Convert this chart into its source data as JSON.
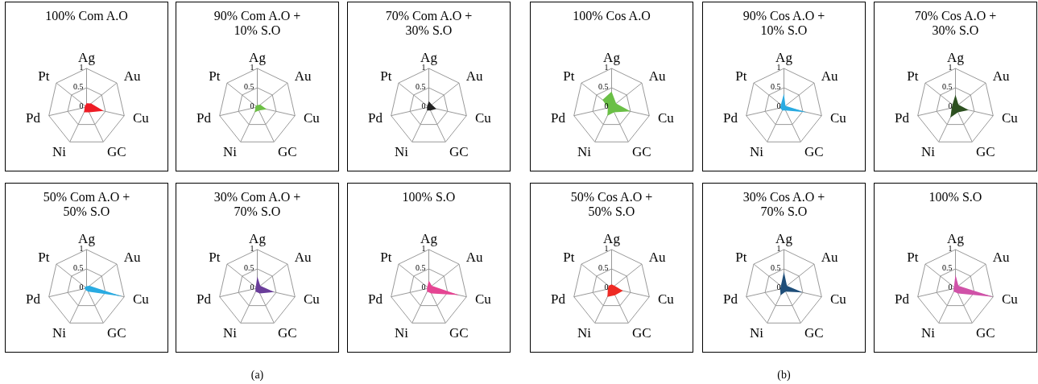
{
  "chart_data": [
    {
      "type": "radar",
      "title": "100% Com A.O",
      "categories": [
        "Ag",
        "Au",
        "Cu",
        "GC",
        "Ni",
        "Pd",
        "Pt"
      ],
      "series": [
        {
          "color": "#ee1c25",
          "values": [
            0.1,
            0.15,
            0.45,
            0.15,
            0.15,
            0.05,
            0.05
          ]
        }
      ],
      "ylim": [
        0,
        1
      ],
      "yticks": [
        0,
        0.5,
        1
      ],
      "grid": true
    },
    {
      "type": "radar",
      "title": "90% Com A.O + 10% S.O",
      "categories": [
        "Ag",
        "Au",
        "Cu",
        "GC",
        "Ni",
        "Pd",
        "Pt"
      ],
      "series": [
        {
          "color": "#6cbf45",
          "values": [
            0.05,
            0.1,
            0.25,
            0.1,
            0.15,
            0.05,
            0.05
          ]
        }
      ],
      "ylim": [
        0,
        1
      ],
      "yticks": [
        0,
        0.5,
        1
      ],
      "grid": true
    },
    {
      "type": "radar",
      "title": "70% Com A.O + 30% S.O",
      "categories": [
        "Ag",
        "Au",
        "Cu",
        "GC",
        "Ni",
        "Pd",
        "Pt"
      ],
      "series": [
        {
          "color": "#222222",
          "values": [
            0.15,
            0.1,
            0.2,
            0.1,
            0.1,
            0.05,
            0.05
          ]
        }
      ],
      "ylim": [
        0,
        1
      ],
      "yticks": [
        0,
        0.5,
        1
      ],
      "grid": true
    },
    {
      "type": "radar",
      "title": "100% Cos A.O",
      "categories": [
        "Ag",
        "Au",
        "Cu",
        "GC",
        "Ni",
        "Pd",
        "Pt"
      ],
      "series": [
        {
          "color": "#6abf46",
          "values": [
            0.4,
            0.15,
            0.5,
            0.15,
            0.25,
            0.1,
            0.3
          ]
        }
      ],
      "ylim": [
        0,
        1
      ],
      "yticks": [
        0,
        0.5,
        1
      ],
      "grid": true
    },
    {
      "type": "radar",
      "title": "90% Cos A.O + 10% S.O",
      "categories": [
        "Ag",
        "Au",
        "Cu",
        "GC",
        "Ni",
        "Pd",
        "Pt"
      ],
      "series": [
        {
          "color": "#29abe2",
          "values": [
            0.35,
            0.05,
            0.6,
            0.1,
            0.1,
            0.1,
            0.1
          ]
        }
      ],
      "ylim": [
        0,
        1
      ],
      "yticks": [
        0,
        0.5,
        1
      ],
      "grid": true
    },
    {
      "type": "radar",
      "title": "70% Cos A.O + 30% S.O",
      "categories": [
        "Ag",
        "Au",
        "Cu",
        "GC",
        "Ni",
        "Pd",
        "Pt"
      ],
      "series": [
        {
          "color": "#2d5020",
          "values": [
            0.32,
            0.1,
            0.35,
            0.15,
            0.3,
            0.1,
            0.1
          ]
        }
      ],
      "ylim": [
        0,
        1
      ],
      "yticks": [
        0,
        0.5,
        1
      ],
      "grid": true
    },
    {
      "type": "radar",
      "title": "50% Com A.O + 50% S.O",
      "categories": [
        "Ag",
        "Au",
        "Cu",
        "GC",
        "Ni",
        "Pd",
        "Pt"
      ],
      "series": [
        {
          "color": "#29abe2",
          "values": [
            0.05,
            0.1,
            0.95,
            0.1,
            0.05,
            0.05,
            0.05
          ]
        }
      ],
      "ylim": [
        0,
        1
      ],
      "yticks": [
        0,
        0.5,
        1
      ],
      "grid": true
    },
    {
      "type": "radar",
      "title": "30% Com A.O + 70% S.O",
      "categories": [
        "Ag",
        "Au",
        "Cu",
        "GC",
        "Ni",
        "Pd",
        "Pt"
      ],
      "series": [
        {
          "color": "#6a3d9a",
          "values": [
            0.3,
            0.1,
            0.45,
            0.15,
            0.1,
            0.05,
            0.05
          ]
        }
      ],
      "ylim": [
        0,
        1
      ],
      "yticks": [
        0,
        0.5,
        1
      ],
      "grid": true,
      "annotations": [
        "(a)"
      ]
    },
    {
      "type": "radar",
      "title": "100% S.O",
      "categories": [
        "Ag",
        "Au",
        "Cu",
        "GC",
        "Ni",
        "Pd",
        "Pt"
      ],
      "series": [
        {
          "color": "#e54593",
          "values": [
            0.2,
            0.1,
            0.8,
            0.15,
            0.1,
            0.05,
            0.05
          ]
        }
      ],
      "ylim": [
        0,
        1
      ],
      "yticks": [
        0,
        0.5,
        1
      ],
      "grid": true
    },
    {
      "type": "radar",
      "title": "50% Cos A.O + 50% S.O",
      "categories": [
        "Ag",
        "Au",
        "Cu",
        "GC",
        "Ni",
        "Pd",
        "Pt"
      ],
      "series": [
        {
          "color": "#ee2a24",
          "values": [
            0.1,
            0.1,
            0.3,
            0.2,
            0.25,
            0.1,
            0.1
          ]
        }
      ],
      "ylim": [
        0,
        1
      ],
      "yticks": [
        0,
        0.5,
        1
      ],
      "grid": true
    },
    {
      "type": "radar",
      "title": "30% Cos A.O + 70% S.O",
      "categories": [
        "Ag",
        "Au",
        "Cu",
        "GC",
        "Ni",
        "Pd",
        "Pt"
      ],
      "series": [
        {
          "color": "#1f4e79",
          "values": [
            0.42,
            0.1,
            0.5,
            0.1,
            0.2,
            0.1,
            0.1
          ]
        }
      ],
      "ylim": [
        0,
        1
      ],
      "yticks": [
        0,
        0.5,
        1
      ],
      "grid": true,
      "annotations": [
        "(b)"
      ]
    },
    {
      "type": "radar",
      "title": "100% S.O",
      "categories": [
        "Ag",
        "Au",
        "Cu",
        "GC",
        "Ni",
        "Pd",
        "Pt"
      ],
      "series": [
        {
          "color": "#d052a8",
          "values": [
            0.35,
            0.1,
            1,
            0.15,
            0.1,
            0.05,
            0.05
          ]
        }
      ],
      "ylim": [
        0,
        1
      ],
      "yticks": [
        0,
        0.5,
        1
      ],
      "grid": true
    }
  ]
}
